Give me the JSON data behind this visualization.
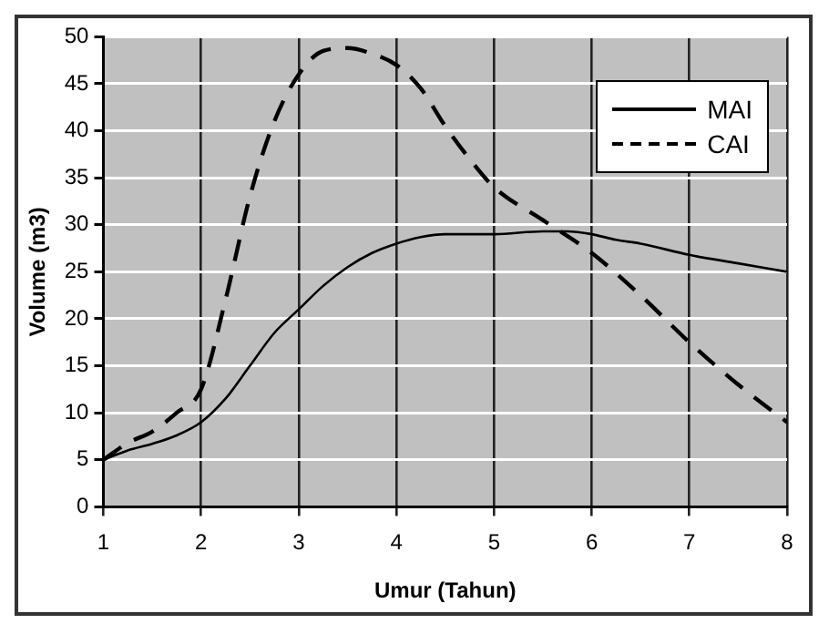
{
  "chart_data": {
    "type": "line",
    "xlabel": "Umur (Tahun)",
    "ylabel": "Volume (m3)",
    "xlim": [
      1,
      8
    ],
    "xticks": [
      1,
      2,
      3,
      4,
      5,
      6,
      7,
      8
    ],
    "ylim": [
      0,
      50
    ],
    "yticks": [
      0,
      5,
      10,
      15,
      20,
      25,
      30,
      35,
      40,
      45,
      50
    ],
    "grid": true,
    "legend": "top right",
    "marker": "none",
    "series": [
      {
        "name": "MAI",
        "color": "#000000",
        "line_style": "solid",
        "x": [
          1,
          1.25,
          1.5,
          1.75,
          2,
          2.25,
          2.5,
          2.75,
          3,
          3.25,
          3.5,
          3.75,
          4,
          4.25,
          4.5,
          5,
          5.5,
          5.75,
          6,
          6.25,
          6.5,
          7,
          7.5,
          8
        ],
        "values": [
          5,
          6,
          6.7,
          7.6,
          9,
          11.5,
          15,
          18.5,
          21,
          23.5,
          25.5,
          27,
          28,
          28.7,
          29,
          29,
          29.3,
          29.3,
          29,
          28.4,
          28,
          26.8,
          25.9,
          25
        ]
      },
      {
        "name": "CAI",
        "color": "#000000",
        "line_style": "dashed",
        "x": [
          1,
          1.25,
          1.5,
          1.75,
          2,
          2.25,
          2.5,
          2.75,
          3,
          3.25,
          3.5,
          3.75,
          4,
          4.25,
          4.5,
          4.75,
          5,
          5.5,
          6,
          6.5,
          7,
          7.5,
          8
        ],
        "values": [
          5,
          6.8,
          8,
          10,
          12.5,
          22,
          33,
          41,
          46,
          48.5,
          48.8,
          48.2,
          47,
          44.5,
          40.5,
          37,
          34,
          30.5,
          27,
          22.5,
          17.5,
          13,
          9
        ]
      }
    ]
  }
}
